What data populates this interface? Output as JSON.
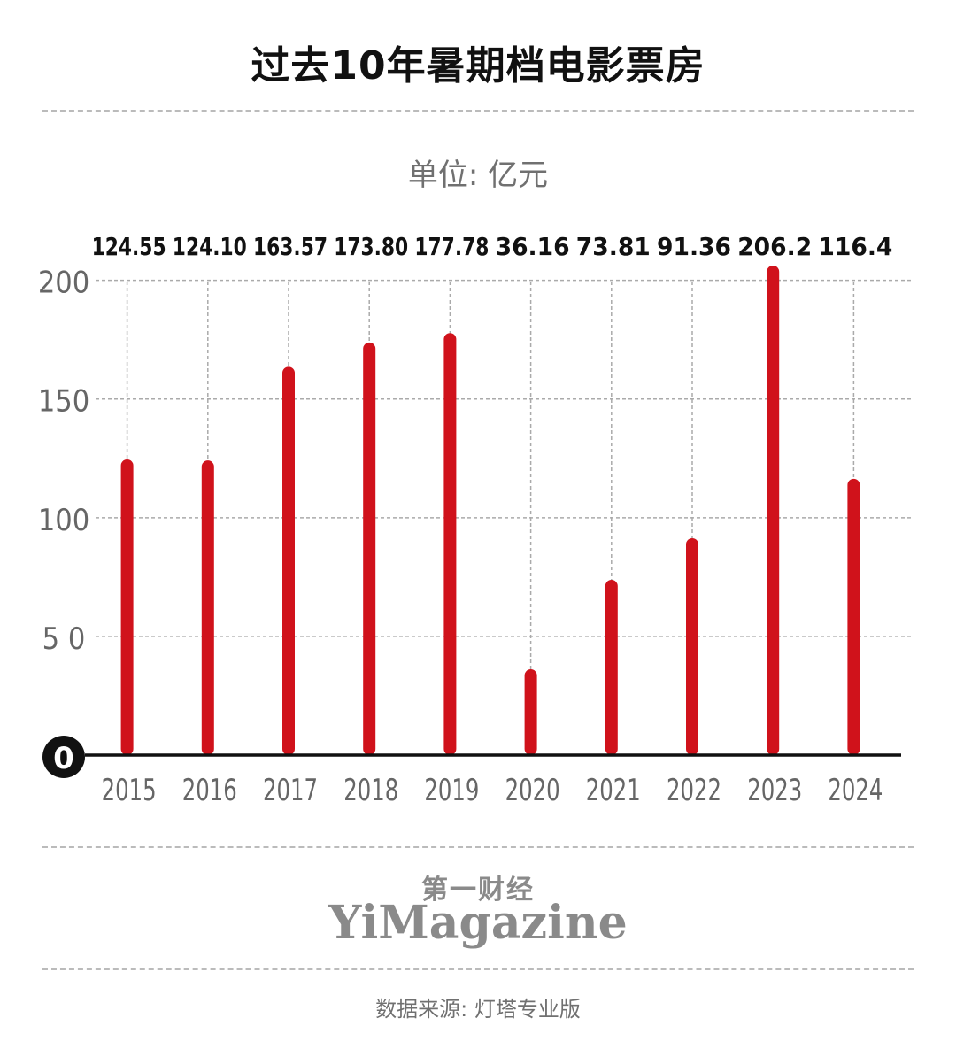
{
  "title": "过去10年暑期档电影票房",
  "unit_label": "单位: 亿元",
  "brand": {
    "cn": "第一财经",
    "en": "YiMagazine"
  },
  "source": "数据来源: 灯塔专业版",
  "colors": {
    "bar": "#d0121b",
    "axis": "#111111",
    "grid": "#aaaaaa",
    "tick": "#666666"
  },
  "chart_data": {
    "type": "bar",
    "categories": [
      "2015",
      "2016",
      "2017",
      "2018",
      "2019",
      "2020",
      "2021",
      "2022",
      "2023",
      "2024"
    ],
    "values": [
      124.55,
      124.1,
      163.57,
      173.8,
      177.78,
      36.16,
      73.81,
      91.36,
      206.2,
      116.4
    ],
    "value_labels": [
      "124.55",
      "124.10",
      "163.57",
      "173.80",
      "177.78",
      "36.16",
      "73.81",
      "91.36",
      "206.2",
      "116.4"
    ],
    "yticks": [
      "0",
      "5 0",
      "100",
      "150",
      "200"
    ],
    "ytick_values": [
      0,
      50,
      100,
      150,
      200
    ],
    "ylim": [
      0,
      206.2
    ],
    "grid": true,
    "xlabel": "",
    "ylabel": ""
  }
}
